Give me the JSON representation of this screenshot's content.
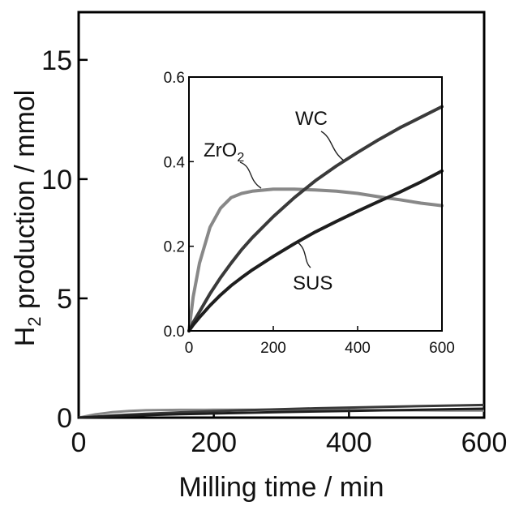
{
  "chart_data": [
    {
      "type": "line",
      "title": "",
      "xlabel": "Milling time / min",
      "ylabel_main": "H",
      "ylabel_sub": "2",
      "ylabel_rest": " production / mmol",
      "xlim": [
        0,
        600
      ],
      "ylim": [
        0,
        17
      ],
      "x_ticks": [
        "0",
        "200",
        "400",
        "600"
      ],
      "y_ticks": [
        "0",
        "5",
        "10",
        "15"
      ],
      "grid": false,
      "legend": "none",
      "x": [
        0,
        25,
        50,
        75,
        100,
        150,
        200,
        250,
        300,
        350,
        400,
        450,
        500,
        550,
        600
      ],
      "series": [
        {
          "name": "ZrO2",
          "color": "#888888",
          "values": [
            0,
            0.14,
            0.23,
            0.28,
            0.31,
            0.325,
            0.33,
            0.33,
            0.33,
            0.325,
            0.32,
            0.31,
            0.305,
            0.3,
            0.295
          ]
        },
        {
          "name": "WC",
          "color": "#3a3a3a",
          "values": [
            0,
            0.045,
            0.088,
            0.126,
            0.16,
            0.22,
            0.27,
            0.315,
            0.355,
            0.39,
            0.42,
            0.45,
            0.48,
            0.505,
            0.53
          ]
        },
        {
          "name": "SUS",
          "color": "#1e1e1e",
          "values": [
            0,
            0.03,
            0.058,
            0.083,
            0.105,
            0.143,
            0.175,
            0.205,
            0.233,
            0.258,
            0.282,
            0.305,
            0.327,
            0.352,
            0.375
          ]
        }
      ]
    },
    {
      "type": "line",
      "title": "",
      "xlabel": "",
      "ylabel": "",
      "xlim": [
        0,
        600
      ],
      "ylim": [
        0,
        0.6
      ],
      "x_ticks": [
        "0",
        "200",
        "400",
        "600"
      ],
      "y_ticks": [
        "0.0",
        "0.2",
        "0.4",
        "0.6"
      ],
      "grid": false,
      "legend": "none",
      "labels": {
        "zro2_main": "ZrO",
        "zro2_sub": "2",
        "wc": "WC",
        "sus": "SUS"
      },
      "x": [
        0,
        10,
        25,
        50,
        75,
        100,
        125,
        150,
        200,
        250,
        300,
        350,
        400,
        450,
        500,
        550,
        600
      ],
      "series": [
        {
          "name": "ZrO2",
          "color": "#888888",
          "values": [
            0,
            0.08,
            0.16,
            0.245,
            0.29,
            0.315,
            0.325,
            0.33,
            0.335,
            0.335,
            0.333,
            0.33,
            0.325,
            0.317,
            0.31,
            0.302,
            0.296
          ]
        },
        {
          "name": "WC",
          "color": "#3a3a3a",
          "values": [
            0,
            0.02,
            0.045,
            0.088,
            0.126,
            0.16,
            0.192,
            0.22,
            0.27,
            0.315,
            0.355,
            0.39,
            0.422,
            0.452,
            0.48,
            0.505,
            0.53
          ]
        },
        {
          "name": "SUS",
          "color": "#1e1e1e",
          "values": [
            0,
            0.014,
            0.032,
            0.06,
            0.085,
            0.107,
            0.126,
            0.144,
            0.176,
            0.206,
            0.234,
            0.259,
            0.283,
            0.306,
            0.328,
            0.352,
            0.378
          ]
        }
      ]
    }
  ]
}
